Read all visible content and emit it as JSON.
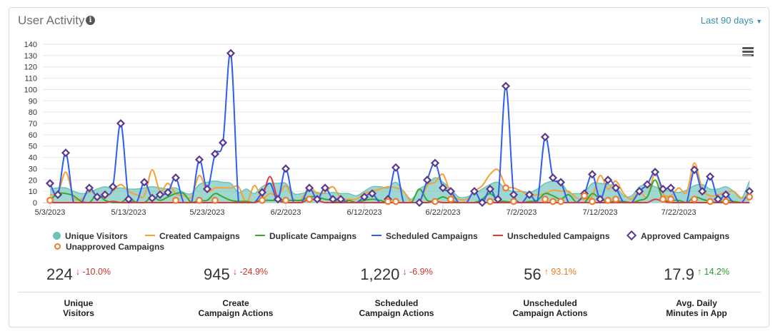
{
  "header": {
    "title": "User Activity",
    "info_icon": "info-circle-icon",
    "range": "Last 90 days",
    "menu_icon": "hamburger-menu-icon"
  },
  "chart_data": {
    "type": "line",
    "title": "",
    "x_start": "5/3/2023",
    "x_end": "7/31/2023",
    "x_tick_labels": [
      "5/3/2023",
      "5/13/2023",
      "5/23/2023",
      "6/2/2023",
      "6/12/2023",
      "6/22/2023",
      "7/2/2023",
      "7/12/2023",
      "7/22/2023"
    ],
    "y_tick_labels": [
      "0",
      "10",
      "20",
      "30",
      "40",
      "50",
      "60",
      "70",
      "80",
      "90",
      "100",
      "110",
      "120",
      "130",
      "140"
    ],
    "ylim": [
      0,
      140
    ],
    "grid": true,
    "legend": "bottom",
    "series": [
      {
        "name": "Unique Visitors",
        "kind": "area",
        "color": "#6cc3b7",
        "values": [
          12,
          13,
          13,
          10,
          8,
          9,
          12,
          14,
          12,
          13,
          12,
          12,
          13,
          14,
          13,
          12,
          13,
          9,
          8,
          16,
          18,
          19,
          18,
          17,
          9,
          12,
          8,
          14,
          17,
          17,
          17,
          8,
          8,
          10,
          9,
          8,
          9,
          8,
          8,
          6,
          10,
          14,
          14,
          13,
          18,
          10,
          3,
          12,
          16,
          22,
          18,
          12,
          5,
          5,
          8,
          12,
          16,
          18,
          12,
          10,
          10,
          9,
          12,
          17,
          19,
          18,
          9,
          8,
          9,
          17,
          17,
          16,
          14,
          6,
          6,
          14,
          16,
          14,
          12,
          10,
          9,
          11,
          15,
          16,
          12,
          12,
          14,
          10,
          4,
          19
        ]
      },
      {
        "name": "Created Campaigns",
        "kind": "line",
        "color": "#f7a035",
        "values": [
          7,
          8,
          27,
          5,
          3,
          10,
          6,
          4,
          10,
          16,
          10,
          7,
          6,
          29,
          10,
          17,
          8,
          6,
          5,
          24,
          10,
          13,
          13,
          13,
          14,
          0,
          15,
          4,
          8,
          6,
          15,
          3,
          3,
          14,
          8,
          9,
          14,
          4,
          3,
          3,
          8,
          10,
          12,
          14,
          13,
          10,
          0,
          0,
          15,
          18,
          25,
          8,
          3,
          3,
          10,
          15,
          25,
          29,
          15,
          13,
          10,
          6,
          7,
          8,
          11,
          10,
          10,
          4,
          3,
          6,
          24,
          12,
          19,
          8,
          3,
          10,
          5,
          26,
          8,
          6,
          13,
          9,
          35,
          12,
          6,
          7,
          9,
          10,
          4,
          7
        ]
      },
      {
        "name": "Duplicate Campaigns",
        "kind": "line",
        "color": "#35a833",
        "values": [
          2,
          8,
          8,
          6,
          1,
          0,
          7,
          2,
          0,
          0,
          4,
          0,
          0,
          5,
          2,
          5,
          8,
          8,
          0,
          2,
          2,
          8,
          5,
          2,
          1,
          1,
          0,
          2,
          2,
          2,
          2,
          2,
          2,
          5,
          5,
          3,
          2,
          0,
          2,
          0,
          2,
          3,
          2,
          0,
          0,
          0,
          0,
          12,
          2,
          2,
          5,
          2,
          0,
          0,
          0,
          3,
          8,
          2,
          1,
          0,
          0,
          1,
          2,
          8,
          6,
          3,
          7,
          0,
          0,
          8,
          3,
          1,
          1,
          1,
          0,
          2,
          5,
          20,
          3,
          2,
          2,
          0,
          5,
          3,
          1,
          0,
          2,
          1,
          0,
          0
        ]
      },
      {
        "name": "Scheduled Campaigns",
        "kind": "line",
        "color": "#2f5ff0",
        "values": [
          17,
          7,
          44,
          0,
          0,
          13,
          5,
          7,
          14,
          70,
          3,
          0,
          18,
          4,
          7,
          9,
          22,
          0,
          0,
          38,
          12,
          43,
          53,
          132,
          0,
          0,
          0,
          9,
          17,
          3,
          30,
          0,
          0,
          13,
          3,
          13,
          3,
          3,
          0,
          0,
          5,
          8,
          0,
          3,
          31,
          0,
          0,
          0,
          20,
          35,
          13,
          10,
          0,
          0,
          10,
          0,
          12,
          3,
          103,
          7,
          0,
          7,
          0,
          58,
          22,
          18,
          0,
          0,
          8,
          25,
          3,
          20,
          13,
          0,
          0,
          10,
          16,
          27,
          12,
          13,
          0,
          0,
          29,
          10,
          23,
          3,
          7,
          0,
          0,
          10
        ]
      },
      {
        "name": "Unscheduled Campaigns",
        "kind": "line",
        "color": "#e0393a",
        "values": [
          0,
          0,
          0,
          0,
          0,
          0,
          0,
          0,
          1,
          0,
          0,
          0,
          0,
          0,
          0,
          0,
          0,
          0,
          0,
          0,
          0,
          0,
          0,
          0,
          0,
          0,
          0,
          5,
          23,
          3,
          0,
          0,
          0,
          3,
          2,
          0,
          0,
          0,
          0,
          0,
          0,
          0,
          0,
          0,
          0,
          0,
          0,
          0,
          0,
          1,
          0,
          0,
          0,
          0,
          0,
          0,
          0,
          0,
          0,
          0,
          0,
          0,
          0,
          0,
          0,
          0,
          0,
          0,
          0,
          0,
          0,
          0,
          0,
          0,
          0,
          0,
          0,
          3,
          1,
          0,
          0,
          0,
          0,
          0,
          0,
          0,
          0,
          0,
          0,
          0
        ]
      },
      {
        "name": "Approved Campaigns",
        "kind": "marker-diamond",
        "color": "#5b3a8e",
        "values": [
          17,
          7,
          44,
          null,
          null,
          13,
          5,
          7,
          14,
          70,
          3,
          null,
          18,
          4,
          7,
          9,
          22,
          null,
          null,
          38,
          12,
          43,
          53,
          132,
          null,
          null,
          null,
          9,
          null,
          3,
          30,
          null,
          null,
          13,
          3,
          13,
          3,
          3,
          null,
          null,
          5,
          8,
          null,
          3,
          31,
          null,
          null,
          0,
          20,
          35,
          13,
          10,
          null,
          null,
          10,
          0,
          12,
          3,
          103,
          7,
          null,
          7,
          null,
          58,
          22,
          18,
          null,
          null,
          8,
          25,
          3,
          20,
          13,
          null,
          null,
          10,
          16,
          27,
          12,
          13,
          null,
          null,
          29,
          10,
          23,
          3,
          7,
          null,
          null,
          10
        ]
      },
      {
        "name": "Unapproved Campaigns",
        "kind": "marker-circle",
        "color": "#f07a30",
        "values": [
          2,
          null,
          null,
          null,
          null,
          null,
          null,
          null,
          null,
          null,
          null,
          null,
          null,
          null,
          null,
          null,
          2,
          null,
          null,
          2,
          null,
          2,
          null,
          null,
          null,
          null,
          null,
          2,
          null,
          null,
          2,
          null,
          null,
          3,
          null,
          null,
          null,
          null,
          null,
          null,
          null,
          null,
          null,
          1,
          1,
          null,
          null,
          null,
          null,
          1,
          null,
          3,
          null,
          null,
          null,
          null,
          1,
          null,
          13,
          1,
          null,
          null,
          null,
          3,
          1,
          1,
          null,
          null,
          6,
          1,
          null,
          2,
          3,
          null,
          null,
          null,
          null,
          null,
          3,
          3,
          null,
          null,
          3,
          null,
          1,
          null,
          1,
          null,
          null,
          5
        ]
      }
    ]
  },
  "stats": [
    {
      "value": "224",
      "change": "-10.0%",
      "arrow": "↓",
      "trend": "down",
      "label1": "Unique",
      "label2": "Visitors"
    },
    {
      "value": "945",
      "change": "-24.9%",
      "arrow": "↓",
      "trend": "down",
      "label1": "Create",
      "label2": "Campaign Actions"
    },
    {
      "value": "1,220",
      "change": "-6.9%",
      "arrow": "↓",
      "trend": "down",
      "label1": "Scheduled",
      "label2": "Campaign Actions"
    },
    {
      "value": "56",
      "change": "93.1%",
      "arrow": "↑",
      "trend": "upo",
      "label1": "Unscheduled",
      "label2": "Campaign Actions"
    },
    {
      "value": "17.9",
      "change": "14.2%",
      "arrow": "↑",
      "trend": "upg",
      "label1": "Avg. Daily",
      "label2": "Minutes in App"
    }
  ]
}
